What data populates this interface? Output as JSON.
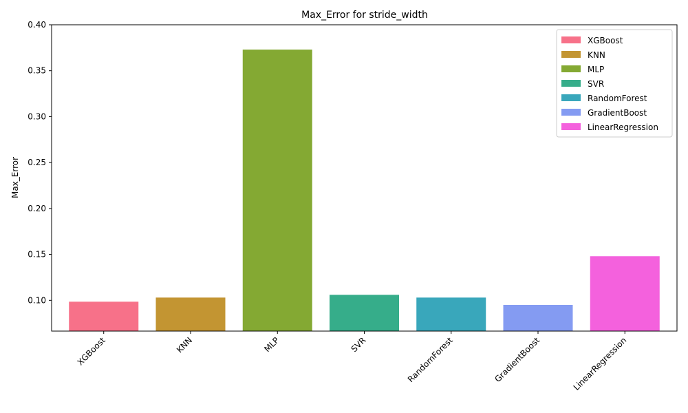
{
  "chart_data": {
    "type": "bar",
    "title": "Max_Error for stride_width",
    "xlabel": "",
    "ylabel": "Max_Error",
    "ylim": [
      0.0665,
      0.4
    ],
    "yticks": [
      0.1,
      0.15,
      0.2,
      0.25,
      0.3,
      0.35,
      0.4
    ],
    "ytick_labels": [
      "0.10",
      "0.15",
      "0.20",
      "0.25",
      "0.30",
      "0.35",
      "0.40"
    ],
    "categories": [
      "XGBoost",
      "KNN",
      "MLP",
      "SVR",
      "RandomForest",
      "GradientBoost",
      "LinearRegression"
    ],
    "values": [
      0.0985,
      0.103,
      0.373,
      0.106,
      0.103,
      0.095,
      0.148
    ],
    "colors": [
      "#f77189",
      "#c39532",
      "#84a933",
      "#36ad8a",
      "#39a7bb",
      "#849bf2",
      "#f461dd"
    ],
    "grid": false,
    "legend_position": "top-right",
    "legend_entries": [
      "XGBoost",
      "KNN",
      "MLP",
      "SVR",
      "RandomForest",
      "GradientBoost",
      "LinearRegression"
    ]
  }
}
